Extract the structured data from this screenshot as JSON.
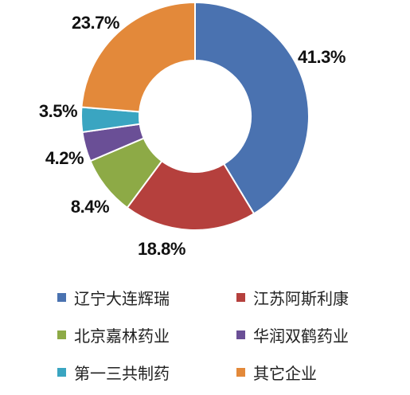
{
  "chart_data": {
    "type": "pie",
    "donut": true,
    "legend_position": "bottom",
    "labels": [
      "辽宁大连辉瑞",
      "江苏阿斯利康",
      "北京嘉林药业",
      "华润双鹤药业",
      "第一三共制药",
      "其它企业"
    ],
    "values": [
      41.3,
      18.8,
      8.4,
      4.2,
      3.5,
      23.7
    ],
    "value_labels": [
      "41.3%",
      "18.8%",
      "8.4%",
      "4.2%",
      "3.5%",
      "23.7%"
    ],
    "colors": [
      "#4a72b0",
      "#b5403d",
      "#8daa46",
      "#6a4f96",
      "#3aa5c1",
      "#e3893a"
    ]
  }
}
